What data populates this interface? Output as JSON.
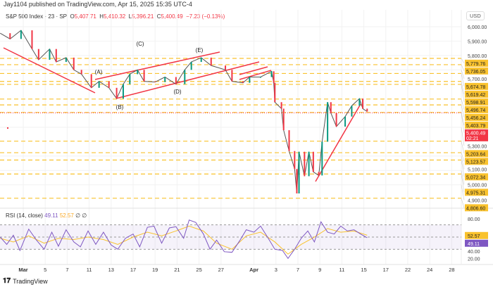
{
  "header": {
    "published": "Jay1104 published on TradingView.com, Apr 15, 2025 15:35 UTC-4"
  },
  "legend": {
    "symbol": "S&P 500 Index · 23 · SP",
    "o_label": "O",
    "o": "5,407.71",
    "h_label": "H",
    "h": "5,410.32",
    "l_label": "L",
    "l": "5,396.21",
    "c_label": "C",
    "c": "5,400.49",
    "change": "−7.23 (−0.13%)"
  },
  "currency": "USD",
  "rsi_legend": {
    "name": "RSI (14, close)",
    "rsi": "49.11",
    "ma": "52.57",
    "extra": "∅ ∅"
  },
  "footer": {
    "brand": "TradingView"
  },
  "colors": {
    "level": "#f9c22e",
    "trend": "#f23645",
    "rsi": "#7e57c2",
    "rsi_ma": "#f9c22e",
    "down": "#f23645",
    "up": "#089981"
  },
  "chart_data": [
    {
      "type": "line",
      "title": "S&P 500 Index · 23 · SP",
      "ylabel": "USD",
      "ylim": [
        4760,
        6080
      ],
      "y_ticks": [
        6000,
        5900,
        5800,
        5700,
        5300,
        5100,
        5000,
        4900
      ],
      "x_ticks": [
        "Mar",
        "5",
        "7",
        "11",
        "13",
        "17",
        "19",
        "21",
        "25",
        "27",
        "Apr",
        "3",
        "7",
        "9",
        "11",
        "15",
        "17",
        "22",
        "24",
        "28"
      ],
      "levels": [
        5779.76,
        5736.05,
        5674.78,
        5619.42,
        5598.91,
        5496.74,
        5456.24,
        5403.79,
        5203.64,
        5123.57,
        5072.34,
        4975.31,
        4806.6
      ],
      "level_labels": [
        "5,779.76",
        "5,736.05",
        "5,674.78",
        "5,619.42",
        "5,598.91",
        "5,496.74",
        "5,456.24",
        "5,403.79",
        "5,203.64",
        "5,123.57",
        "5,072.34",
        "4,975.31",
        "4,806.60"
      ],
      "current_price": 5400.49,
      "current_label": "5,400.49",
      "countdown": "02:21",
      "wave_labels": [
        "(A)",
        "(B)",
        "(C)",
        "(D)",
        "(E)"
      ],
      "price": [
        [
          -2.1,
          5955
        ],
        [
          -1.2,
          5915
        ],
        [
          -0.2,
          5975
        ],
        [
          0.8,
          5845
        ],
        [
          1.4,
          5770
        ],
        [
          2.4,
          5845
        ],
        [
          3,
          5755
        ],
        [
          3.9,
          5785
        ],
        [
          4.6,
          5700
        ],
        [
          5.3,
          5670
        ],
        [
          6.2,
          5575
        ],
        [
          6.9,
          5620
        ],
        [
          7.8,
          5575
        ],
        [
          8.5,
          5500
        ],
        [
          9.1,
          5600
        ],
        [
          9.7,
          5670
        ],
        [
          10.4,
          5700
        ],
        [
          11,
          5620
        ],
        [
          12,
          5615
        ],
        [
          12.9,
          5650
        ],
        [
          13.9,
          5600
        ],
        [
          14.7,
          5700
        ],
        [
          15.3,
          5755
        ],
        [
          16.2,
          5785
        ],
        [
          17.1,
          5730
        ],
        [
          18.4,
          5700
        ],
        [
          19,
          5620
        ],
        [
          20,
          5610
        ],
        [
          20.6,
          5650
        ],
        [
          21.6,
          5650
        ],
        [
          22.6,
          5690
        ],
        [
          22.8,
          5610
        ],
        [
          22.9,
          5475
        ],
        [
          23.5,
          5430
        ],
        [
          23.7,
          5280
        ],
        [
          24.2,
          5135
        ],
        [
          24.7,
          5010
        ],
        [
          24.9,
          4840
        ],
        [
          25.1,
          5130
        ],
        [
          25.6,
          4960
        ],
        [
          26,
          5130
        ],
        [
          26.4,
          4990
        ],
        [
          26.9,
          4965
        ],
        [
          27.2,
          5200
        ],
        [
          27.7,
          5475
        ],
        [
          28,
          5400
        ],
        [
          28.5,
          5305
        ],
        [
          29.3,
          5375
        ],
        [
          29.9,
          5450
        ],
        [
          30.6,
          5500
        ],
        [
          30.9,
          5430
        ],
        [
          31.3,
          5410
        ]
      ]
    },
    {
      "type": "line",
      "title": "RSI (14, close)",
      "ylim": [
        10,
        85
      ],
      "y_ticks": [
        80,
        40,
        20
      ],
      "bands": [
        70,
        50,
        30
      ],
      "rsi_label": "49.11",
      "ma_label": "52.57",
      "rsi": [
        [
          -2.1,
          50
        ],
        [
          -1.5,
          38
        ],
        [
          -0.9,
          53
        ],
        [
          -0.3,
          28
        ],
        [
          0.5,
          63
        ],
        [
          1.2,
          45
        ],
        [
          1.9,
          30
        ],
        [
          2.6,
          58
        ],
        [
          3.2,
          35
        ],
        [
          3.9,
          62
        ],
        [
          4.6,
          42
        ],
        [
          5.2,
          34
        ],
        [
          5.9,
          60
        ],
        [
          6.6,
          38
        ],
        [
          7.3,
          58
        ],
        [
          8,
          37
        ],
        [
          8.6,
          30
        ],
        [
          9.3,
          48
        ],
        [
          10,
          55
        ],
        [
          10.6,
          34
        ],
        [
          11.3,
          66
        ],
        [
          11.9,
          68
        ],
        [
          12.6,
          40
        ],
        [
          13.3,
          65
        ],
        [
          13.9,
          67
        ],
        [
          14.6,
          48
        ],
        [
          15.1,
          78
        ],
        [
          15.7,
          74
        ],
        [
          16.4,
          55
        ],
        [
          17,
          30
        ],
        [
          17.6,
          45
        ],
        [
          18.3,
          26
        ],
        [
          19,
          25
        ],
        [
          19.7,
          44
        ],
        [
          20.3,
          62
        ],
        [
          21,
          58
        ],
        [
          21.6,
          68
        ],
        [
          22.3,
          48
        ],
        [
          22.9,
          30
        ],
        [
          23.6,
          28
        ],
        [
          24.1,
          15
        ],
        [
          24.7,
          30
        ],
        [
          25.3,
          48
        ],
        [
          25.9,
          60
        ],
        [
          26.5,
          42
        ],
        [
          27.1,
          75
        ],
        [
          27.7,
          58
        ],
        [
          28.3,
          55
        ],
        [
          28.9,
          68
        ],
        [
          29.5,
          60
        ],
        [
          30.1,
          62
        ],
        [
          30.7,
          55
        ],
        [
          31.3,
          49
        ]
      ],
      "ma": [
        [
          -2.1,
          48
        ],
        [
          -0.9,
          42
        ],
        [
          0.5,
          52
        ],
        [
          1.9,
          40
        ],
        [
          3.2,
          48
        ],
        [
          4.6,
          46
        ],
        [
          5.9,
          50
        ],
        [
          7.3,
          46
        ],
        [
          8.6,
          38
        ],
        [
          10,
          50
        ],
        [
          11.3,
          58
        ],
        [
          12.6,
          52
        ],
        [
          13.9,
          60
        ],
        [
          15.1,
          68
        ],
        [
          16.4,
          60
        ],
        [
          17.6,
          40
        ],
        [
          19,
          30
        ],
        [
          20.3,
          52
        ],
        [
          21.6,
          58
        ],
        [
          22.9,
          42
        ],
        [
          24.1,
          22
        ],
        [
          25.3,
          38
        ],
        [
          26.5,
          50
        ],
        [
          27.7,
          64
        ],
        [
          28.9,
          58
        ],
        [
          30.1,
          60
        ],
        [
          31.3,
          53
        ]
      ]
    }
  ]
}
